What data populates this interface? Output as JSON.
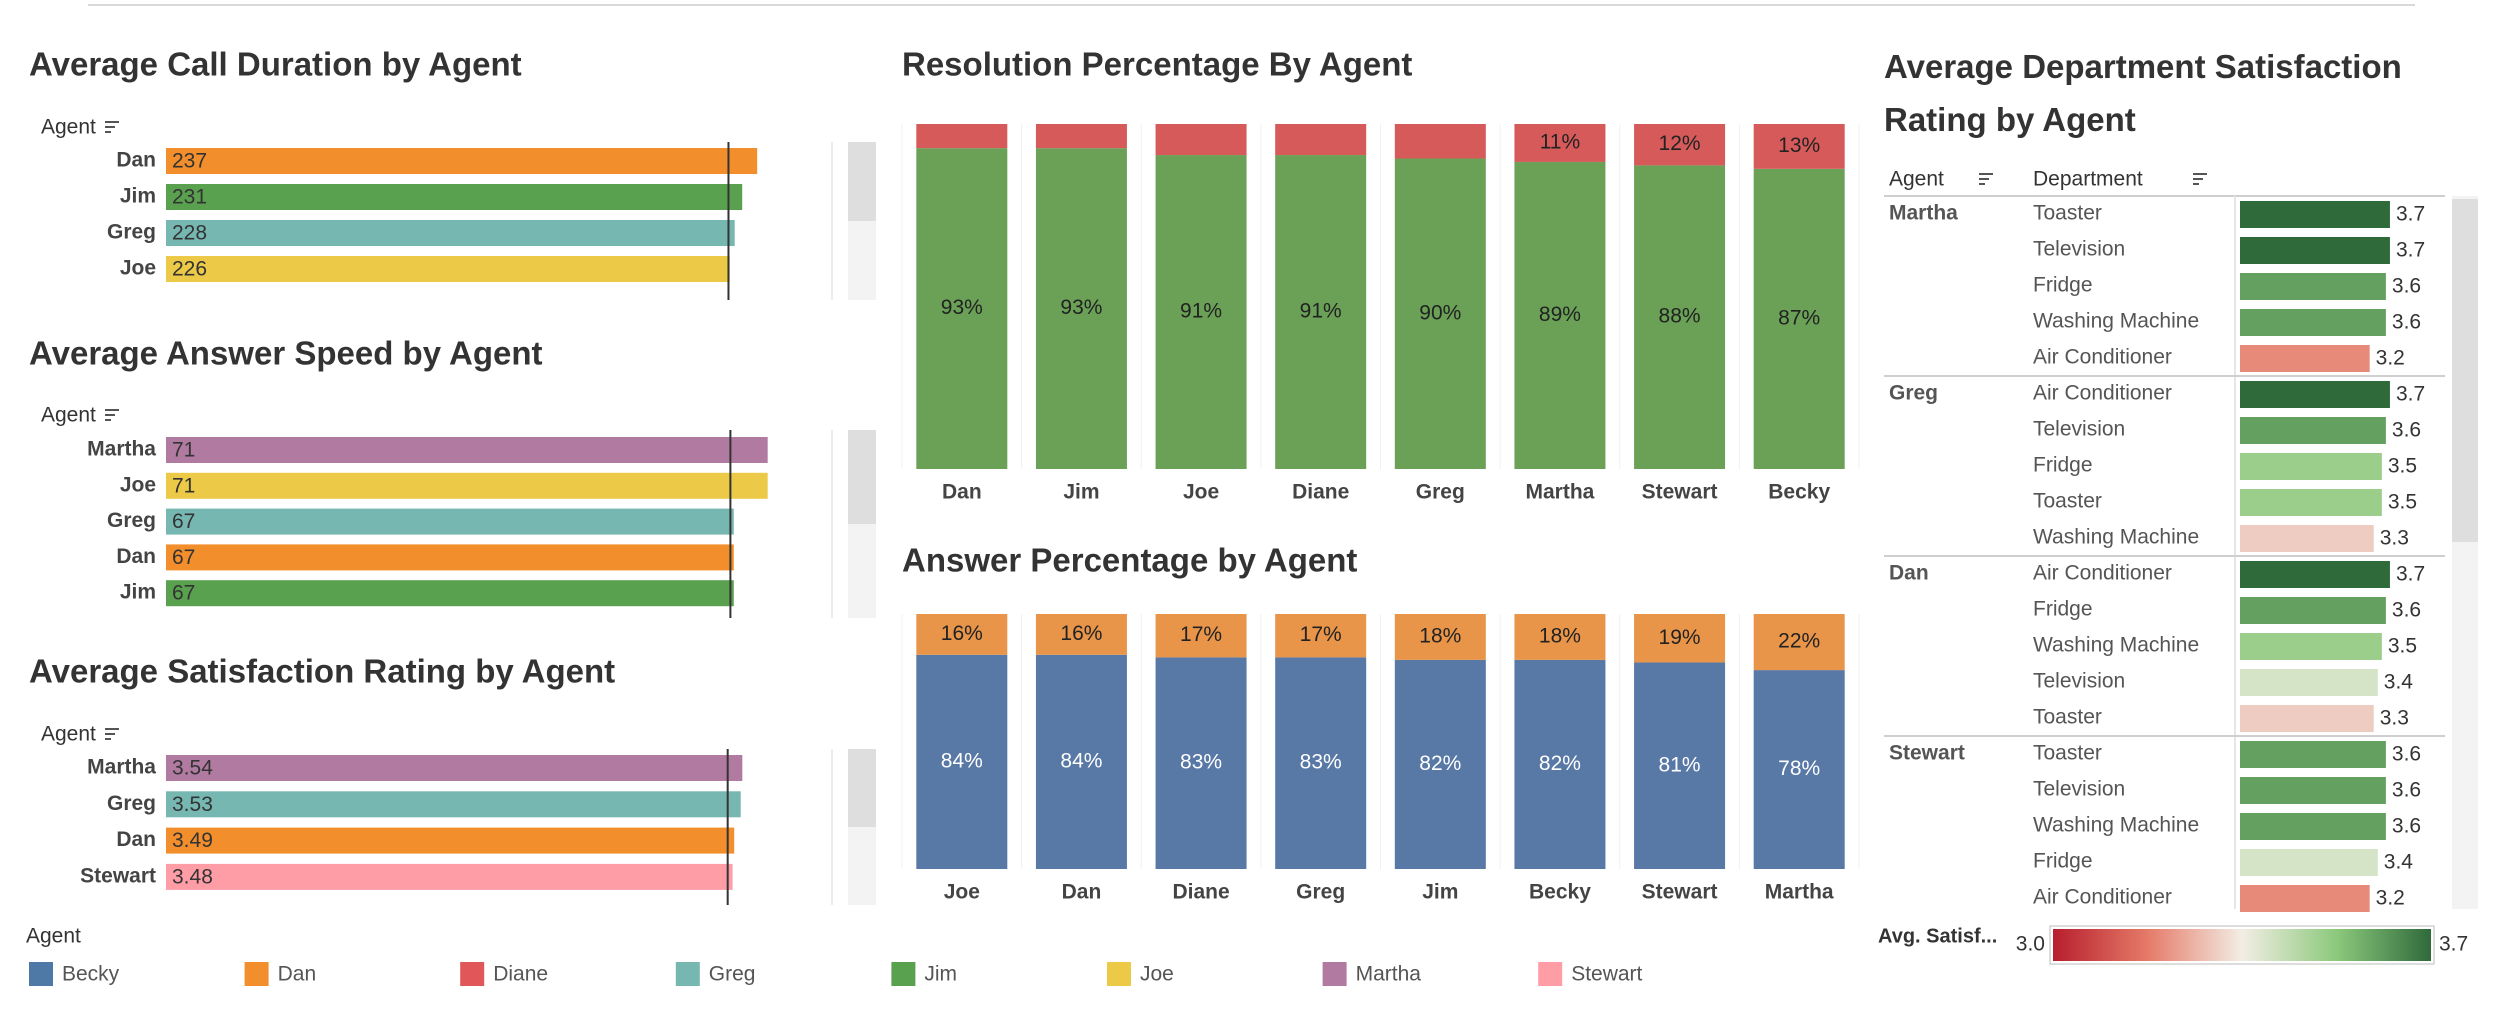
{
  "legend": {
    "title": "Agent",
    "items": [
      {
        "name": "Becky",
        "color": "#4e79a7"
      },
      {
        "name": "Dan",
        "color": "#f28e2b"
      },
      {
        "name": "Diane",
        "color": "#e15759"
      },
      {
        "name": "Greg",
        "color": "#76b7b2"
      },
      {
        "name": "Jim",
        "color": "#59a14f"
      },
      {
        "name": "Joe",
        "color": "#edc948"
      },
      {
        "name": "Martha",
        "color": "#b07aa1"
      },
      {
        "name": "Stewart",
        "color": "#ff9da7"
      }
    ]
  },
  "chart_data": [
    {
      "type": "hbar",
      "title": "Average Call Duration by Agent",
      "y_label": "Agent",
      "categories": [
        "Dan",
        "Jim",
        "Greg",
        "Joe"
      ],
      "values": [
        237,
        231,
        228,
        226
      ],
      "xlim": [
        0,
        265
      ],
      "reference_line": 225.5
    },
    {
      "type": "hbar",
      "title": "Average Answer Speed by Agent",
      "y_label": "Agent",
      "categories": [
        "Martha",
        "Joe",
        "Greg",
        "Dan",
        "Jim"
      ],
      "values": [
        71,
        71,
        67,
        67,
        67
      ],
      "xlim": [
        0,
        78
      ],
      "reference_line": 66.6
    },
    {
      "type": "hbar",
      "title": "Average Satisfaction Rating by Agent",
      "y_label": "Agent",
      "categories": [
        "Martha",
        "Greg",
        "Dan",
        "Stewart"
      ],
      "values": [
        3.54,
        3.53,
        3.49,
        3.48
      ],
      "xlim": [
        0,
        4.06
      ],
      "reference_line": 3.45
    },
    {
      "type": "stacked_bar",
      "title": "Resolution Percentage By Agent",
      "categories": [
        "Dan",
        "Jim",
        "Joe",
        "Diane",
        "Greg",
        "Martha",
        "Stewart",
        "Becky"
      ],
      "ylim": [
        0,
        100
      ],
      "series": [
        {
          "color": "#6aa156",
          "label_color": "#222222",
          "values": [
            93,
            93,
            91,
            91,
            90,
            89,
            88,
            87
          ],
          "value_labels": [
            "93%",
            "93%",
            "91%",
            "91%",
            "90%",
            "89%",
            "88%",
            "87%"
          ]
        },
        {
          "color": "#d65a5a",
          "label_color": "#222222",
          "values": [
            7,
            7,
            9,
            9,
            10,
            11,
            12,
            13
          ],
          "value_labels": [
            null,
            null,
            null,
            null,
            null,
            "11%",
            "12%",
            "13%"
          ]
        }
      ]
    },
    {
      "type": "stacked_bar",
      "title": "Answer Percentage by Agent",
      "categories": [
        "Joe",
        "Dan",
        "Diane",
        "Greg",
        "Jim",
        "Becky",
        "Stewart",
        "Martha"
      ],
      "ylim": [
        0,
        100
      ],
      "series": [
        {
          "color": "#5878a6",
          "label_color": "#ffffff",
          "values": [
            84,
            84,
            83,
            83,
            82,
            82,
            81,
            78
          ],
          "value_labels": [
            "84%",
            "84%",
            "83%",
            "83%",
            "82%",
            "82%",
            "81%",
            "78%"
          ]
        },
        {
          "color": "#e8954a",
          "label_color": "#222222",
          "values": [
            16,
            16,
            17,
            17,
            18,
            18,
            19,
            22
          ],
          "value_labels": [
            "16%",
            "16%",
            "17%",
            "17%",
            "18%",
            "18%",
            "19%",
            "22%"
          ]
        }
      ]
    },
    {
      "type": "table_bar",
      "title": "Average Department Satisfaction Rating by Agent",
      "columns": [
        "Agent",
        "Department"
      ],
      "xlim": [
        0,
        3.8
      ],
      "groups": [
        {
          "agent": "Martha",
          "rows": [
            {
              "department": "Toaster",
              "value": 3.7
            },
            {
              "department": "Television",
              "value": 3.7
            },
            {
              "department": "Fridge",
              "value": 3.6
            },
            {
              "department": "Washing Machine",
              "value": 3.6
            },
            {
              "department": "Air Conditioner",
              "value": 3.2
            }
          ]
        },
        {
          "agent": "Greg",
          "rows": [
            {
              "department": "Air Conditioner",
              "value": 3.7
            },
            {
              "department": "Television",
              "value": 3.6
            },
            {
              "department": "Fridge",
              "value": 3.5
            },
            {
              "department": "Toaster",
              "value": 3.5
            },
            {
              "department": "Washing Machine",
              "value": 3.3
            }
          ]
        },
        {
          "agent": "Dan",
          "rows": [
            {
              "department": "Air Conditioner",
              "value": 3.7
            },
            {
              "department": "Fridge",
              "value": 3.6
            },
            {
              "department": "Washing Machine",
              "value": 3.5
            },
            {
              "department": "Television",
              "value": 3.4
            },
            {
              "department": "Toaster",
              "value": 3.3
            }
          ]
        },
        {
          "agent": "Stewart",
          "rows": [
            {
              "department": "Toaster",
              "value": 3.6
            },
            {
              "department": "Television",
              "value": 3.6
            },
            {
              "department": "Washing Machine",
              "value": 3.6
            },
            {
              "department": "Fridge",
              "value": 3.4
            },
            {
              "department": "Air Conditioner",
              "value": 3.2
            }
          ]
        }
      ],
      "color_scale": {
        "title": "Avg. Satisf...",
        "clim": [
          3,
          3.7
        ],
        "ticks": [
          {
            "value": 3,
            "label": "3.0"
          },
          3.7
        ],
        "colors": [
          "#b71f2e",
          "#e57a68",
          "#f2ede4",
          "#8cc97c",
          "#2f6a3b"
        ]
      }
    }
  ]
}
